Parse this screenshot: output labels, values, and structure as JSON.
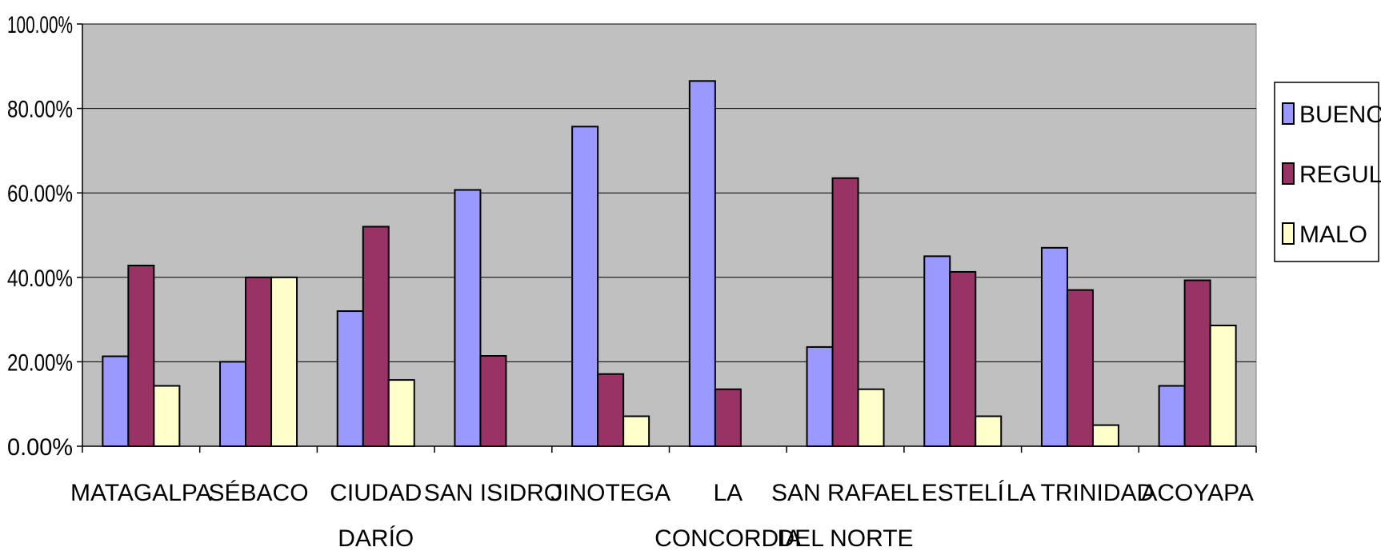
{
  "chart_data": {
    "type": "bar",
    "categories": [
      [
        "MATAGALPA"
      ],
      [
        "SÉBACO"
      ],
      [
        "CIUDAD",
        "DARÍO"
      ],
      [
        "SAN ISIDRO"
      ],
      [
        "JINOTEGA"
      ],
      [
        "LA",
        "CONCORDIA"
      ],
      [
        "SAN RAFAEL",
        "DEL NORTE"
      ],
      [
        "ESTELÍ"
      ],
      [
        "LA TRINIDAD"
      ],
      [
        "ACOYAPA"
      ]
    ],
    "series": [
      {
        "name": "BUENO",
        "color": "#9999FF",
        "values": [
          0.213,
          0.2,
          0.32,
          0.607,
          0.757,
          0.865,
          0.235,
          0.45,
          0.47,
          0.143
        ]
      },
      {
        "name": "REGULAR",
        "color": "#993366",
        "values": [
          0.428,
          0.4,
          0.52,
          0.214,
          0.171,
          0.135,
          0.635,
          0.413,
          0.37,
          0.393
        ]
      },
      {
        "name": "MALO",
        "color": "#FFFFCC",
        "values": [
          0.143,
          0.4,
          0.157,
          0,
          0.071,
          0,
          0.135,
          0.071,
          0.05,
          0.286
        ]
      }
    ],
    "yticks": [
      "0.00%",
      "20.00%",
      "40.00%",
      "60.00%",
      "80.00%",
      "100.00%"
    ],
    "ylim": [
      0,
      1
    ],
    "grid": true,
    "plot_background": "#C0C0C0",
    "legend_position": "right"
  }
}
